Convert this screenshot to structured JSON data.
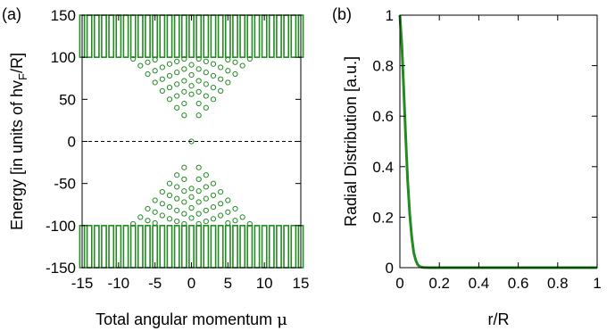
{
  "chart_data": [
    {
      "type": "scatter",
      "panel_label": "(a)",
      "xlabel": "Total angular momentum",
      "xlabel_symbol": "μ",
      "ylabel": "Energy [in units of hv",
      "ylabel_sub": "F",
      "ylabel_end": "/R]",
      "xlim": [
        -15,
        15
      ],
      "ylim": [
        -150,
        150
      ],
      "xticks": [
        -15,
        -10,
        -5,
        0,
        5,
        10,
        15
      ],
      "yticks": [
        -150,
        -100,
        -50,
        0,
        50,
        100,
        150
      ],
      "grid": false,
      "legend": "none",
      "marker": "open-circle",
      "color": "#228B22",
      "reference_line": {
        "y": 0,
        "style": "dashed",
        "color": "#000000"
      },
      "bands": {
        "mu_values": [
          -15,
          -14,
          -13,
          -12,
          -11,
          -10,
          -9,
          -8,
          -7,
          -6,
          -5,
          -4,
          -3,
          -2,
          -1,
          0,
          1,
          2,
          3,
          4,
          5,
          6,
          7,
          8,
          9,
          10,
          11,
          12,
          13,
          14,
          15
        ],
        "dense_band_edge": 100,
        "energy_max": 150
      },
      "points": [
        {
          "x": 0,
          "y": 0
        },
        {
          "x": -1,
          "y": 31
        },
        {
          "x": 1,
          "y": 31
        },
        {
          "x": -2,
          "y": 40
        },
        {
          "x": 2,
          "y": 40
        },
        {
          "x": -1,
          "y": 45
        },
        {
          "x": 1,
          "y": 45
        },
        {
          "x": -3,
          "y": 50
        },
        {
          "x": 3,
          "y": 50
        },
        {
          "x": -2,
          "y": 54
        },
        {
          "x": 2,
          "y": 54
        },
        {
          "x": -4,
          "y": 60
        },
        {
          "x": 4,
          "y": 60
        },
        {
          "x": -1,
          "y": 59
        },
        {
          "x": 1,
          "y": 59
        },
        {
          "x": 0,
          "y": 56
        },
        {
          "x": -3,
          "y": 64
        },
        {
          "x": 3,
          "y": 64
        },
        {
          "x": -5,
          "y": 70
        },
        {
          "x": 5,
          "y": 70
        },
        {
          "x": -2,
          "y": 68
        },
        {
          "x": 2,
          "y": 68
        },
        {
          "x": 0,
          "y": 66
        },
        {
          "x": -1,
          "y": 72
        },
        {
          "x": 1,
          "y": 72
        },
        {
          "x": -4,
          "y": 74
        },
        {
          "x": 4,
          "y": 74
        },
        {
          "x": -6,
          "y": 80
        },
        {
          "x": 6,
          "y": 80
        },
        {
          "x": -3,
          "y": 78
        },
        {
          "x": 3,
          "y": 78
        },
        {
          "x": -2,
          "y": 82
        },
        {
          "x": 2,
          "y": 82
        },
        {
          "x": 0,
          "y": 79
        },
        {
          "x": -5,
          "y": 84
        },
        {
          "x": 5,
          "y": 84
        },
        {
          "x": -1,
          "y": 86
        },
        {
          "x": 1,
          "y": 86
        },
        {
          "x": -7,
          "y": 90
        },
        {
          "x": 7,
          "y": 90
        },
        {
          "x": -4,
          "y": 88
        },
        {
          "x": 4,
          "y": 88
        },
        {
          "x": -3,
          "y": 92
        },
        {
          "x": 3,
          "y": 92
        },
        {
          "x": 0,
          "y": 91
        },
        {
          "x": -6,
          "y": 94
        },
        {
          "x": 6,
          "y": 94
        },
        {
          "x": -2,
          "y": 95
        },
        {
          "x": 2,
          "y": 95
        },
        {
          "x": -8,
          "y": 98
        },
        {
          "x": 8,
          "y": 98
        },
        {
          "x": -5,
          "y": 97
        },
        {
          "x": 5,
          "y": 97
        },
        {
          "x": -1,
          "y": 98
        },
        {
          "x": 1,
          "y": 98
        }
      ]
    },
    {
      "type": "line",
      "panel_label": "(b)",
      "xlabel": "r/R",
      "ylabel": "Radial Distribution [a.u.]",
      "xlim": [
        0,
        1
      ],
      "ylim": [
        0,
        1
      ],
      "xticks": [
        0,
        0.2,
        0.4,
        0.6,
        0.8,
        1
      ],
      "yticks": [
        0,
        0.2,
        0.4,
        0.6,
        0.8,
        1
      ],
      "grid": false,
      "legend": "none",
      "color": "#228B22",
      "x": [
        0,
        0.01,
        0.02,
        0.03,
        0.04,
        0.05,
        0.06,
        0.07,
        0.08,
        0.09,
        0.1,
        0.11,
        0.12,
        0.15,
        0.2,
        0.3,
        0.4,
        0.5,
        0.6,
        0.7,
        0.8,
        0.9,
        1.0
      ],
      "y": [
        1.0,
        0.88,
        0.7,
        0.51,
        0.34,
        0.21,
        0.12,
        0.06,
        0.03,
        0.012,
        0.005,
        0.002,
        0.001,
        0,
        0,
        0,
        0,
        0,
        0,
        0,
        0,
        0,
        0
      ]
    }
  ]
}
